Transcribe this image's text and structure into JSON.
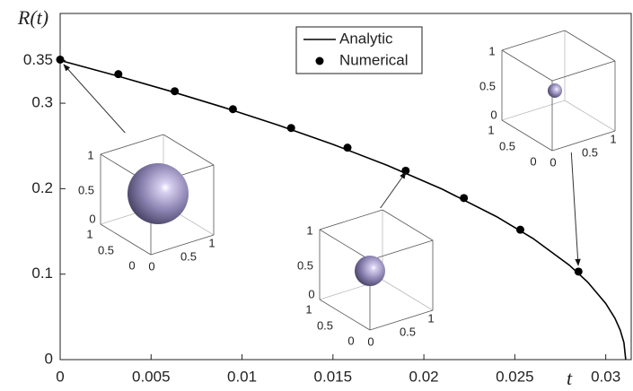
{
  "chart_data": {
    "type": "line-scatter",
    "xlabel": "t",
    "ylabel": "R(t)",
    "xlim": [
      0,
      0.0314
    ],
    "ylim": [
      0,
      0.405
    ],
    "xticks": [
      0,
      0.005,
      0.01,
      0.015,
      0.02,
      0.025,
      0.03
    ],
    "yticks": [
      0,
      0.1,
      0.2,
      0.3,
      0.35
    ],
    "legend": "upper-center",
    "series": [
      {
        "name": "Analytic",
        "kind": "line",
        "color": "#000000",
        "x": [
          0,
          0.003,
          0.006,
          0.009,
          0.012,
          0.015,
          0.018,
          0.021,
          0.024,
          0.026,
          0.028,
          0.029,
          0.03,
          0.0305,
          0.0308,
          0.031,
          0.0311
        ],
        "values": [
          0.35,
          0.3327,
          0.3144,
          0.295,
          0.2743,
          0.2518,
          0.2272,
          0.1995,
          0.1672,
          0.1417,
          0.1105,
          0.0909,
          0.0658,
          0.0486,
          0.0344,
          0.0198,
          0
        ]
      },
      {
        "name": "Numerical",
        "kind": "scatter",
        "color": "#000000",
        "x": [
          0,
          0.0032,
          0.0063,
          0.0095,
          0.0127,
          0.0158,
          0.019,
          0.0222,
          0.0253,
          0.0285
        ],
        "values": [
          0.351,
          0.334,
          0.314,
          0.293,
          0.271,
          0.248,
          0.221,
          0.189,
          0.152,
          0.103
        ]
      }
    ],
    "insets": [
      {
        "zticks": [
          1,
          0.5,
          0
        ],
        "yticks": [
          1,
          0.5,
          0
        ],
        "xticks": [
          0,
          0.5,
          1
        ]
      },
      {
        "zticks": [
          1,
          0.5,
          0
        ],
        "yticks": [
          1,
          0.5,
          0
        ],
        "xticks": [
          0,
          0.5,
          1
        ]
      },
      {
        "zticks": [
          1,
          0.5,
          0
        ],
        "yticks": [
          1,
          0.5,
          0
        ],
        "xticks": [
          0,
          0.5,
          1
        ]
      }
    ]
  }
}
